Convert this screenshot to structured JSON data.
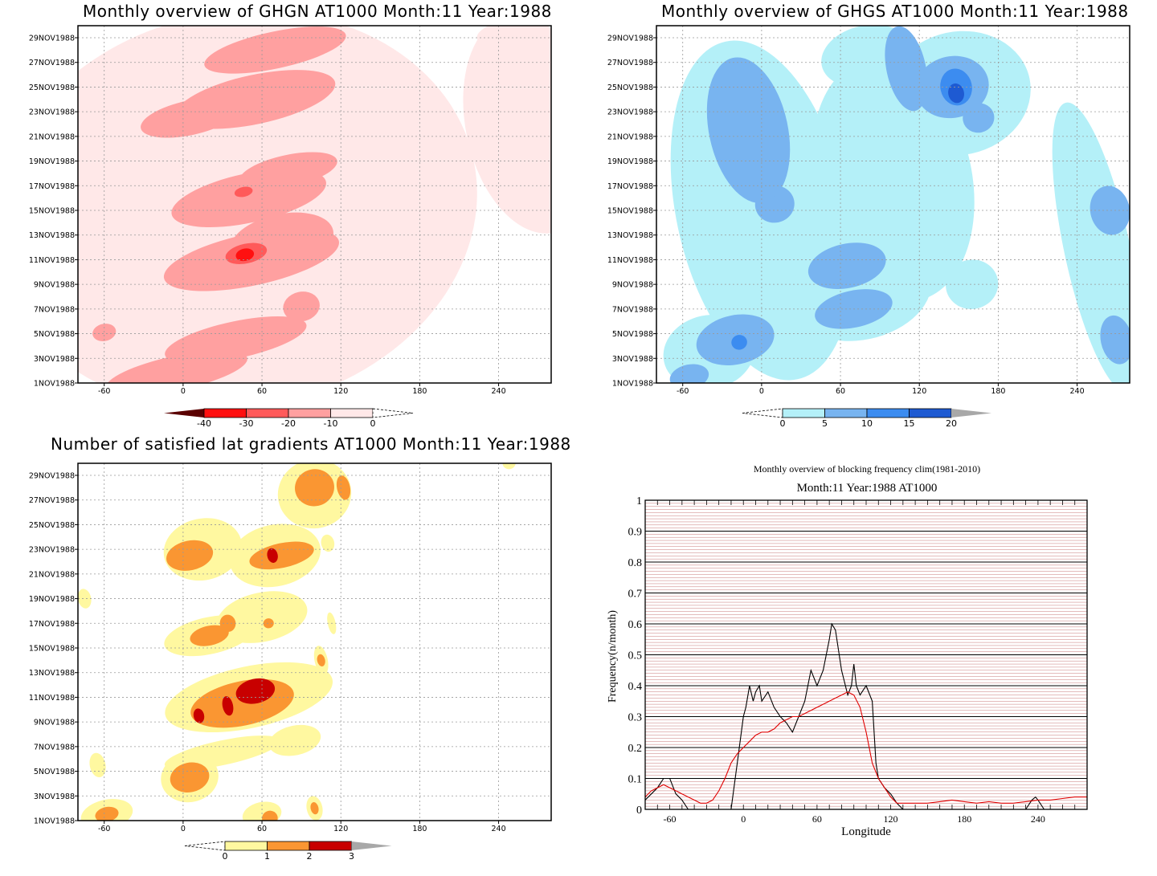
{
  "panels": {
    "ghgn": {
      "title": "Monthly overview of GHGN AT1000 Month:11 Year:1988",
      "colorbar": {
        "labels": [
          "-40",
          "-30",
          "-20",
          "-10",
          "0"
        ],
        "colors": [
          "#5a0000",
          "#ff1010",
          "#ff5a5a",
          "#ffa0a0",
          "#ffe8e8",
          "#ffffff"
        ]
      }
    },
    "ghgs": {
      "title": "Monthly overview of GHGS AT1000 Month:11 Year:1988",
      "colorbar": {
        "labels": [
          "0",
          "5",
          "10",
          "15",
          "20"
        ],
        "colors": [
          "#ffffff",
          "#b4f0f8",
          "#78b4f0",
          "#3c8cf0",
          "#1e5ad2",
          "#a8a8a8"
        ]
      }
    },
    "grad": {
      "title": "Number of satisfied lat gradients AT1000 Month:11 Year:1988",
      "colorbar": {
        "labels": [
          "0",
          "1",
          "2",
          "3"
        ],
        "colors": [
          "#ffffff",
          "#fff8a0",
          "#fa9632",
          "#c80000",
          "#a8a8a8"
        ]
      }
    },
    "freq": {
      "title": "Monthly overview of blocking frequency clim(1981-2010)",
      "subtitle": "Month:11 Year:1988  AT1000"
    }
  },
  "time_axis": [
    "1NOV1988",
    "3NOV1988",
    "5NOV1988",
    "7NOV1988",
    "9NOV1988",
    "11NOV1988",
    "13NOV1988",
    "15NOV1988",
    "17NOV1988",
    "19NOV1988",
    "21NOV1988",
    "23NOV1988",
    "25NOV1988",
    "27NOV1988",
    "29NOV1988"
  ],
  "lon_ticks": [
    "-60",
    "0",
    "60",
    "120",
    "180",
    "240"
  ],
  "chart_data": [
    {
      "type": "heatmap",
      "title": "Monthly overview of GHGN AT1000 Month:11 Year:1988",
      "xlim": [
        -80,
        280
      ],
      "x_ticks": [
        -60,
        0,
        60,
        120,
        180,
        240
      ],
      "y_ticks": [
        "1NOV1988",
        "3NOV1988",
        "5NOV1988",
        "7NOV1988",
        "9NOV1988",
        "11NOV1988",
        "13NOV1988",
        "15NOV1988",
        "17NOV1988",
        "19NOV1988",
        "21NOV1988",
        "23NOV1988",
        "25NOV1988",
        "27NOV1988",
        "29NOV1988"
      ],
      "levels": [
        -40,
        -30,
        -20,
        -10,
        0
      ],
      "grid": true,
      "blobs": [
        {
          "lon": -5,
          "day": 1.8,
          "rlon": 55,
          "rday": 1.4,
          "level": 2
        },
        {
          "lon": 40,
          "day": 4.5,
          "rlon": 55,
          "rday": 1.5,
          "level": 2
        },
        {
          "lon": -60,
          "day": 5.1,
          "rlon": 9,
          "rday": 0.7,
          "level": 2
        },
        {
          "lon": 90,
          "day": 7.2,
          "rlon": 14,
          "rday": 1.2,
          "level": 2
        },
        {
          "lon": 52,
          "day": 11.0,
          "rlon": 68,
          "rday": 2.1,
          "level": 2
        },
        {
          "lon": 75,
          "day": 12.5,
          "rlon": 40,
          "rday": 2.2,
          "level": 2
        },
        {
          "lon": 48,
          "day": 11.5,
          "rlon": 16,
          "rday": 0.8,
          "level": 3
        },
        {
          "lon": 47,
          "day": 11.4,
          "rlon": 7,
          "rday": 0.5,
          "level": 4
        },
        {
          "lon": 50,
          "day": 16.0,
          "rlon": 60,
          "rday": 2.0,
          "level": 2
        },
        {
          "lon": 46,
          "day": 16.5,
          "rlon": 7,
          "rday": 0.4,
          "level": 3
        },
        {
          "lon": 80,
          "day": 18.2,
          "rlon": 38,
          "rday": 1.3,
          "level": 2
        },
        {
          "lon": 5,
          "day": 22.5,
          "rlon": 38,
          "rday": 1.4,
          "level": 2
        },
        {
          "lon": 55,
          "day": 24.0,
          "rlon": 62,
          "rday": 2.0,
          "level": 2
        },
        {
          "lon": 70,
          "day": 28.0,
          "rlon": 55,
          "rday": 1.5,
          "level": 2
        },
        {
          "lon": 40,
          "day": 15.0,
          "rlon": 185,
          "rday": 16.0,
          "level": 1
        },
        {
          "lon": -45,
          "day": 9.0,
          "rlon": 45,
          "rday": 9.0,
          "level": 1
        },
        {
          "lon": 265,
          "day": 22.0,
          "rlon": 50,
          "rday": 9.0,
          "level": 1
        },
        {
          "lon": 248,
          "day": 29.5,
          "rlon": 25,
          "rday": 1.0,
          "level": 1
        }
      ]
    },
    {
      "type": "heatmap",
      "title": "Monthly overview of GHGS AT1000 Month:11 Year:1988",
      "xlim": [
        -80,
        280
      ],
      "x_ticks": [
        -60,
        0,
        60,
        120,
        180,
        240
      ],
      "y_ticks": [
        "1NOV1988",
        "3NOV1988",
        "5NOV1988",
        "7NOV1988",
        "9NOV1988",
        "11NOV1988",
        "13NOV1988",
        "15NOV1988",
        "17NOV1988",
        "19NOV1988",
        "21NOV1988",
        "23NOV1988",
        "25NOV1988",
        "27NOV1988",
        "29NOV1988"
      ],
      "levels": [
        0,
        5,
        10,
        15,
        20
      ],
      "grid": true,
      "blobs": [
        {
          "lon": 0,
          "day": 15.0,
          "rlon": 65,
          "rday": 14.0,
          "level": 1
        },
        {
          "lon": -40,
          "day": 3.5,
          "rlon": 35,
          "rday": 3.0,
          "level": 1
        },
        {
          "lon": 75,
          "day": 8.5,
          "rlon": 55,
          "rday": 4.0,
          "level": 1
        },
        {
          "lon": 100,
          "day": 17.5,
          "rlon": 60,
          "rday": 10.0,
          "level": 1
        },
        {
          "lon": 150,
          "day": 24.5,
          "rlon": 55,
          "rday": 5.0,
          "level": 1
        },
        {
          "lon": 80,
          "day": 27.5,
          "rlon": 35,
          "rday": 2.5,
          "level": 1
        },
        {
          "lon": 255,
          "day": 12.0,
          "rlon": 25,
          "rday": 12.0,
          "level": 1
        },
        {
          "lon": 160,
          "day": 9.0,
          "rlon": 20,
          "rday": 2.0,
          "level": 1
        },
        {
          "lon": -20,
          "day": 4.5,
          "rlon": 30,
          "rday": 2.0,
          "level": 2
        },
        {
          "lon": -17,
          "day": 4.3,
          "rlon": 6,
          "rday": 0.6,
          "level": 3
        },
        {
          "lon": -55,
          "day": 1.5,
          "rlon": 15,
          "rday": 1.0,
          "level": 2
        },
        {
          "lon": 70,
          "day": 7.0,
          "rlon": 30,
          "rday": 1.5,
          "level": 2
        },
        {
          "lon": 65,
          "day": 10.5,
          "rlon": 30,
          "rday": 1.8,
          "level": 2
        },
        {
          "lon": 10,
          "day": 15.5,
          "rlon": 15,
          "rday": 1.5,
          "level": 2
        },
        {
          "lon": -10,
          "day": 21.5,
          "rlon": 30,
          "rday": 6.0,
          "level": 2
        },
        {
          "lon": 110,
          "day": 26.5,
          "rlon": 15,
          "rday": 3.5,
          "level": 2
        },
        {
          "lon": 145,
          "day": 25.0,
          "rlon": 28,
          "rday": 2.5,
          "level": 2
        },
        {
          "lon": 148,
          "day": 25.0,
          "rlon": 12,
          "rday": 1.5,
          "level": 3
        },
        {
          "lon": 148,
          "day": 24.5,
          "rlon": 6,
          "rday": 0.8,
          "level": 4
        },
        {
          "lon": 165,
          "day": 22.5,
          "rlon": 12,
          "rday": 1.2,
          "level": 2
        },
        {
          "lon": 265,
          "day": 15.0,
          "rlon": 15,
          "rday": 2.0,
          "level": 2
        },
        {
          "lon": 270,
          "day": 4.5,
          "rlon": 12,
          "rday": 2.0,
          "level": 2
        }
      ]
    },
    {
      "type": "heatmap",
      "title": "Number of satisfied lat gradients AT1000 Month:11 Year:1988",
      "xlim": [
        -80,
        280
      ],
      "x_ticks": [
        -60,
        0,
        60,
        120,
        180,
        240
      ],
      "y_ticks": [
        "1NOV1988",
        "3NOV1988",
        "5NOV1988",
        "7NOV1988",
        "9NOV1988",
        "11NOV1988",
        "13NOV1988",
        "15NOV1988",
        "17NOV1988",
        "19NOV1988",
        "21NOV1988",
        "23NOV1988",
        "25NOV1988",
        "27NOV1988",
        "29NOV1988"
      ],
      "levels": [
        0,
        1,
        2,
        3
      ],
      "grid": true,
      "blobs": [
        {
          "lon": -58,
          "day": 1.5,
          "rlon": 20,
          "rday": 1.2,
          "level": 1
        },
        {
          "lon": -58,
          "day": 1.5,
          "rlon": 9,
          "rday": 0.6,
          "level": 2
        },
        {
          "lon": -65,
          "day": 5.5,
          "rlon": 6,
          "rday": 1.0,
          "level": 1
        },
        {
          "lon": 5,
          "day": 4.5,
          "rlon": 22,
          "rday": 2.0,
          "level": 1
        },
        {
          "lon": 5,
          "day": 4.5,
          "rlon": 15,
          "rday": 1.2,
          "level": 2
        },
        {
          "lon": 60,
          "day": 1.5,
          "rlon": 15,
          "rday": 1.0,
          "level": 1
        },
        {
          "lon": 66,
          "day": 1.2,
          "rlon": 6,
          "rday": 0.6,
          "level": 2
        },
        {
          "lon": 100,
          "day": 2.0,
          "rlon": 6,
          "rday": 1.0,
          "level": 1
        },
        {
          "lon": 100,
          "day": 2.0,
          "rlon": 3,
          "rday": 0.5,
          "level": 2
        },
        {
          "lon": 30,
          "day": 6.5,
          "rlon": 45,
          "rday": 1.0,
          "level": 1
        },
        {
          "lon": 85,
          "day": 7.5,
          "rlon": 20,
          "rday": 1.2,
          "level": 1
        },
        {
          "lon": 50,
          "day": 11.0,
          "rlon": 65,
          "rday": 2.5,
          "level": 1
        },
        {
          "lon": 45,
          "day": 10.5,
          "rlon": 40,
          "rday": 1.8,
          "level": 2
        },
        {
          "lon": 55,
          "day": 11.5,
          "rlon": 15,
          "rday": 1.0,
          "level": 3
        },
        {
          "lon": 34,
          "day": 10.3,
          "rlon": 4,
          "rday": 0.8,
          "level": 3
        },
        {
          "lon": 12,
          "day": 9.5,
          "rlon": 4,
          "rday": 0.6,
          "level": 3
        },
        {
          "lon": 105,
          "day": 14.0,
          "rlon": 5,
          "rday": 1.2,
          "level": 1
        },
        {
          "lon": 105,
          "day": 14.0,
          "rlon": 3,
          "rday": 0.5,
          "level": 2
        },
        {
          "lon": 20,
          "day": 16.0,
          "rlon": 35,
          "rday": 1.5,
          "level": 1
        },
        {
          "lon": 20,
          "day": 16.0,
          "rlon": 15,
          "rday": 0.8,
          "level": 2
        },
        {
          "lon": 34,
          "day": 17.0,
          "rlon": 6,
          "rday": 0.7,
          "level": 2
        },
        {
          "lon": 60,
          "day": 17.5,
          "rlon": 35,
          "rday": 2.0,
          "level": 1
        },
        {
          "lon": 65,
          "day": 17.0,
          "rlon": 4,
          "rday": 0.4,
          "level": 2
        },
        {
          "lon": -75,
          "day": 19.0,
          "rlon": 5,
          "rday": 0.8,
          "level": 1
        },
        {
          "lon": 113,
          "day": 17.0,
          "rlon": 3,
          "rday": 0.9,
          "level": 1
        },
        {
          "lon": 15,
          "day": 23.0,
          "rlon": 30,
          "rday": 2.5,
          "level": 1
        },
        {
          "lon": 5,
          "day": 22.5,
          "rlon": 18,
          "rday": 1.2,
          "level": 2
        },
        {
          "lon": 70,
          "day": 22.5,
          "rlon": 35,
          "rday": 2.5,
          "level": 1
        },
        {
          "lon": 75,
          "day": 22.5,
          "rlon": 25,
          "rday": 1.0,
          "level": 2
        },
        {
          "lon": 68,
          "day": 22.5,
          "rlon": 4,
          "rday": 0.6,
          "level": 3
        },
        {
          "lon": 110,
          "day": 23.5,
          "rlon": 5,
          "rday": 0.7,
          "level": 1
        },
        {
          "lon": 100,
          "day": 27.5,
          "rlon": 28,
          "rday": 2.8,
          "level": 1
        },
        {
          "lon": 100,
          "day": 28.0,
          "rlon": 15,
          "rday": 1.5,
          "level": 2
        },
        {
          "lon": 122,
          "day": 28.0,
          "rlon": 5,
          "rday": 1.0,
          "level": 2
        },
        {
          "lon": 248,
          "day": 30.0,
          "rlon": 5,
          "rday": 0.5,
          "level": 1
        }
      ]
    },
    {
      "type": "line",
      "title": "Monthly overview of blocking frequency clim(1981-2010)",
      "subtitle": "Month:11 Year:1988  AT1000",
      "xlabel": "Longitude",
      "ylabel": "Frequency(n/month)",
      "xlim": [
        -80,
        280
      ],
      "ylim": [
        0,
        1
      ],
      "x_ticks": [
        -60,
        0,
        60,
        120,
        180,
        240
      ],
      "y_ticks": [
        0,
        0.1,
        0.2,
        0.3,
        0.4,
        0.5,
        0.6,
        0.7,
        0.8,
        0.9,
        1
      ],
      "grid": true,
      "series": [
        {
          "color": "#000000",
          "x": [
            -80,
            -75,
            -70,
            -65,
            -60,
            -57,
            -55,
            -50,
            -45,
            -40,
            -35,
            -30,
            -25,
            -20,
            -15,
            -10,
            -5,
            0,
            2,
            5,
            8,
            10,
            13,
            15,
            20,
            25,
            30,
            35,
            40,
            45,
            50,
            55,
            60,
            65,
            70,
            72,
            75,
            80,
            85,
            88,
            90,
            92,
            95,
            100,
            105,
            108,
            110,
            115,
            120,
            125,
            130,
            140,
            150,
            160,
            170,
            180,
            190,
            200,
            210,
            220,
            230,
            235,
            238,
            240,
            245,
            250,
            260,
            270,
            280
          ],
          "y": [
            0.03,
            0.05,
            0.07,
            0.1,
            0.1,
            0.07,
            0.05,
            0.03,
            0,
            0,
            0,
            0,
            0,
            0,
            0,
            0,
            0.15,
            0.3,
            0.33,
            0.4,
            0.35,
            0.38,
            0.4,
            0.35,
            0.38,
            0.33,
            0.3,
            0.28,
            0.25,
            0.3,
            0.35,
            0.45,
            0.4,
            0.45,
            0.55,
            0.6,
            0.58,
            0.45,
            0.37,
            0.4,
            0.47,
            0.4,
            0.37,
            0.4,
            0.35,
            0.15,
            0.1,
            0.07,
            0.05,
            0.02,
            0,
            0,
            0,
            0,
            0,
            0,
            0,
            0,
            0,
            0,
            0,
            0.03,
            0.04,
            0.03,
            0,
            0,
            0,
            0,
            0
          ]
        },
        {
          "color": "#e00000",
          "x": [
            -80,
            -75,
            -70,
            -65,
            -60,
            -55,
            -50,
            -45,
            -40,
            -35,
            -30,
            -25,
            -20,
            -15,
            -10,
            -5,
            0,
            5,
            10,
            15,
            20,
            25,
            30,
            35,
            40,
            45,
            50,
            55,
            60,
            65,
            70,
            75,
            80,
            85,
            90,
            95,
            100,
            105,
            110,
            115,
            120,
            125,
            130,
            140,
            150,
            160,
            170,
            180,
            190,
            200,
            210,
            220,
            230,
            240,
            250,
            260,
            270,
            280
          ],
          "y": [
            0.04,
            0.06,
            0.07,
            0.08,
            0.07,
            0.06,
            0.05,
            0.04,
            0.03,
            0.02,
            0.02,
            0.03,
            0.06,
            0.1,
            0.15,
            0.18,
            0.2,
            0.22,
            0.24,
            0.25,
            0.25,
            0.26,
            0.28,
            0.29,
            0.3,
            0.3,
            0.31,
            0.32,
            0.33,
            0.34,
            0.35,
            0.36,
            0.37,
            0.38,
            0.37,
            0.33,
            0.25,
            0.15,
            0.1,
            0.07,
            0.04,
            0.02,
            0.02,
            0.02,
            0.02,
            0.025,
            0.03,
            0.025,
            0.02,
            0.025,
            0.02,
            0.02,
            0.025,
            0.03,
            0.03,
            0.035,
            0.04,
            0.04
          ]
        }
      ]
    }
  ]
}
